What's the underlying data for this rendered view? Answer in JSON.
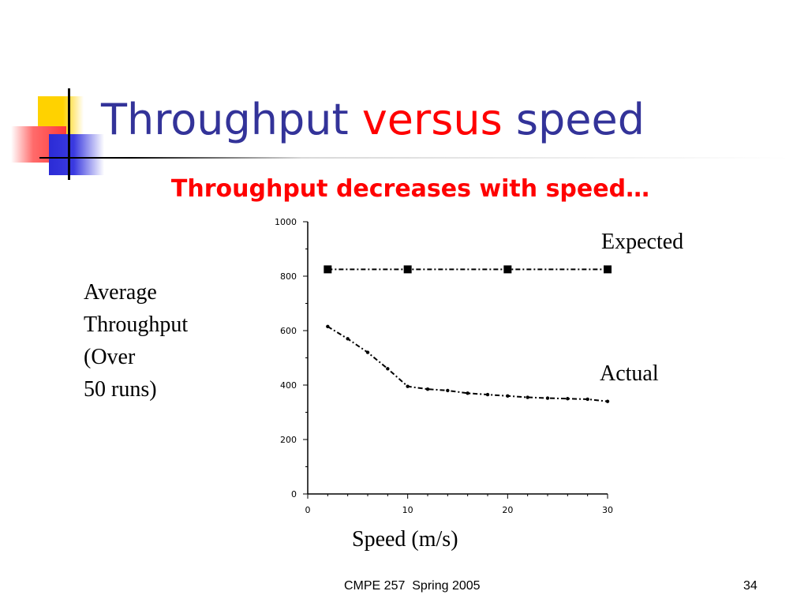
{
  "slide": {
    "title_start": "Throughput ",
    "title_mid": "versus",
    "title_end": " speed",
    "subtitle": "Throughput decreases with speed…",
    "footer_course": "CMPE 257  Spring 2005",
    "footer_page": "34"
  },
  "colors": {
    "title": "#333399",
    "accent": "#ff0000",
    "deco_yellow": "#ffd200",
    "deco_red": "#ff3a3a",
    "deco_blue": "#2b2bd6"
  },
  "chart_data": {
    "type": "line",
    "xlabel": "Speed (m/s)",
    "ylabel_lines": [
      "Average",
      "Throughput",
      "(Over",
      "50 runs)"
    ],
    "xlim": [
      0,
      30
    ],
    "ylim": [
      0,
      1000
    ],
    "xticks": [
      0,
      10,
      20,
      30
    ],
    "yticks": [
      0,
      200,
      400,
      600,
      800,
      1000
    ],
    "grid": false,
    "series": [
      {
        "name": "Expected",
        "x": [
          2,
          10,
          20,
          30
        ],
        "y": [
          825,
          825,
          825,
          825
        ],
        "marker": "square",
        "dash": "dash-dot"
      },
      {
        "name": "Actual",
        "x": [
          2,
          4,
          6,
          8,
          10,
          12,
          14,
          16,
          18,
          20,
          22,
          24,
          26,
          28,
          30
        ],
        "y": [
          615,
          570,
          520,
          460,
          395,
          385,
          380,
          370,
          365,
          360,
          355,
          352,
          350,
          348,
          340
        ],
        "marker": "dot",
        "dash": "dash-dot"
      }
    ]
  }
}
